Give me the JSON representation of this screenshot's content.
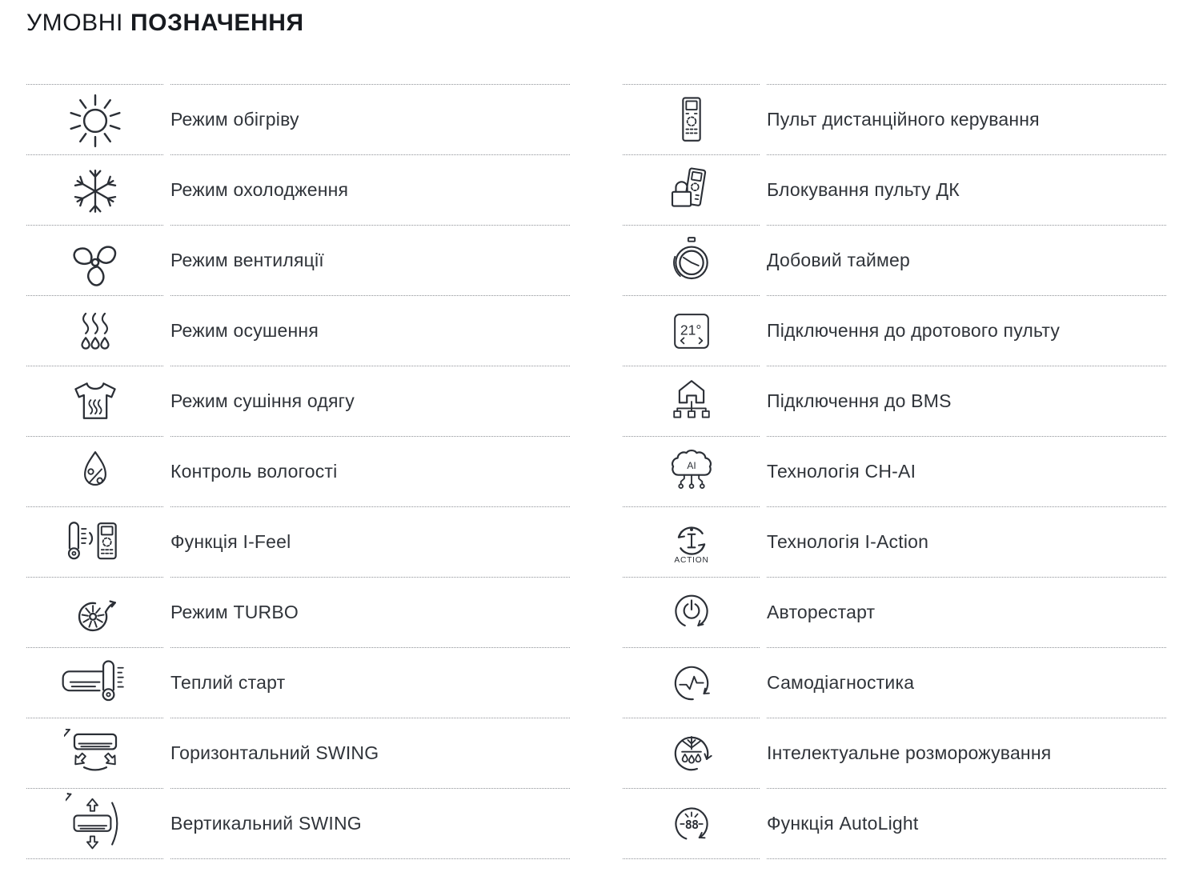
{
  "page": {
    "title_light": "УМОВНІ",
    "title_bold": "ПОЗНАЧЕННЯ"
  },
  "colors": {
    "ink": "#2b2f36",
    "divider": "#8e9297"
  },
  "legend": {
    "columns": [
      {
        "id": "left",
        "items": [
          {
            "icon": "heating-sun",
            "label": "Режим обігріву"
          },
          {
            "icon": "cooling-snowflake",
            "label": "Режим охолодження"
          },
          {
            "icon": "ventilation-fan",
            "label": "Режим вентиляції"
          },
          {
            "icon": "dehumidification",
            "label": "Режим осушення"
          },
          {
            "icon": "clothes-drying",
            "label": "Режим сушіння одягу"
          },
          {
            "icon": "humidity-control",
            "label": "Контроль вологості"
          },
          {
            "icon": "i-feel",
            "label": "Функція I-Feel"
          },
          {
            "icon": "turbo",
            "label": "Режим TURBO"
          },
          {
            "icon": "warm-start",
            "label": "Теплий старт"
          },
          {
            "icon": "horizontal-swing",
            "label": "Горизонтальний SWING"
          },
          {
            "icon": "vertical-swing",
            "label": "Вертикальний SWING"
          }
        ]
      },
      {
        "id": "right",
        "items": [
          {
            "icon": "remote-control",
            "label": "Пульт дистанційного керування"
          },
          {
            "icon": "remote-lock",
            "label": "Блокування пульту ДК"
          },
          {
            "icon": "daily-timer",
            "label": "Добовий таймер"
          },
          {
            "icon": "wired-controller",
            "label": "Підключення до дротового пульту",
            "icon_text": "21°"
          },
          {
            "icon": "bms-connection",
            "label": "Підключення до BMS"
          },
          {
            "icon": "ch-ai",
            "label": "Технологія CH-AI",
            "icon_text": "AI"
          },
          {
            "icon": "i-action",
            "label": "Технологія I-Action",
            "icon_text": "ACTION"
          },
          {
            "icon": "autorestart",
            "label": "Авторестарт"
          },
          {
            "icon": "self-diagnostics",
            "label": "Самодіагностика"
          },
          {
            "icon": "intelligent-defrost",
            "label": "Інтелектуальне розморожування"
          },
          {
            "icon": "autolight",
            "label": "Функція AutoLight",
            "icon_text": "88"
          }
        ]
      }
    ]
  }
}
